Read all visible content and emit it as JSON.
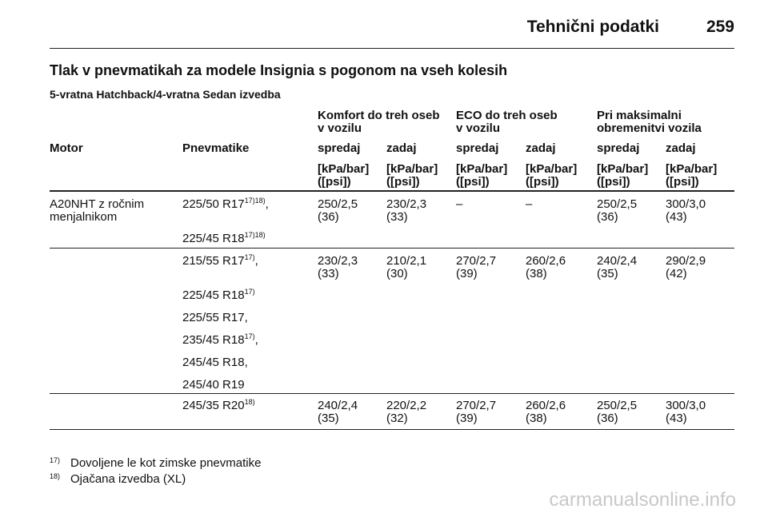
{
  "header": {
    "title": "Tehnični podatki",
    "page": "259"
  },
  "section_title": "Tlak v pnevmatikah za modele Insignia s pogonom na vseh kolesih",
  "subtitle": "5-vratna Hatchback/4-vratna Sedan izvedba",
  "table": {
    "group_headers": [
      [
        "Komfort do treh oseb",
        "v vozilu"
      ],
      [
        "ECO do treh oseb",
        "v vozilu"
      ],
      [
        "Pri maksimalni",
        "obremenitvi vozila"
      ]
    ],
    "columns": [
      "Motor",
      "Pnevmatike",
      "spredaj",
      "zadaj",
      "spredaj",
      "zadaj",
      "spredaj",
      "zadaj"
    ],
    "units": [
      [
        "[kPa/bar]",
        "([psi])"
      ],
      [
        "[kPa/bar]",
        "([psi])"
      ],
      [
        "[kPa/bar]",
        "([psi])"
      ],
      [
        "[kPa/bar]",
        "([psi])"
      ],
      [
        "[kPa/bar]",
        "([psi])"
      ],
      [
        "[kPa/bar]",
        "([psi])"
      ]
    ],
    "rows": [
      {
        "motor": [
          "A20NHT z ročnim",
          "menjalnikom"
        ],
        "tires": [
          {
            "text": "225/50 R17",
            "sup": "17)18)",
            "suffix": ","
          },
          {
            "text": "225/45 R18",
            "sup": "17)18)"
          }
        ],
        "values": [
          [
            "250/2,5",
            "(36)"
          ],
          [
            "230/2,3",
            "(33)"
          ],
          [
            "–"
          ],
          [
            "–"
          ],
          [
            "250/2,5",
            "(36)"
          ],
          [
            "300/3,0",
            "(43)"
          ]
        ]
      },
      {
        "motor": [],
        "tires": [
          {
            "text": "215/55 R17",
            "sup": "17)",
            "suffix": ","
          },
          {
            "text": "225/45 R18",
            "sup": "17)"
          },
          {
            "text": "225/55 R17,"
          },
          {
            "text": "235/45 R18",
            "sup": "17)",
            "suffix": ","
          },
          {
            "text": "245/45 R18,"
          },
          {
            "text": "245/40 R19"
          }
        ],
        "values": [
          [
            "230/2,3",
            "(33)"
          ],
          [
            "210/2,1",
            "(30)"
          ],
          [
            "270/2,7",
            "(39)"
          ],
          [
            "260/2,6",
            "(38)"
          ],
          [
            "240/2,4",
            "(35)"
          ],
          [
            "290/2,9",
            "(42)"
          ]
        ]
      },
      {
        "motor": [],
        "tires": [
          {
            "text": "245/35 R20",
            "sup": "18)"
          }
        ],
        "values": [
          [
            "240/2,4",
            "(35)"
          ],
          [
            "220/2,2",
            "(32)"
          ],
          [
            "270/2,7",
            "(39)"
          ],
          [
            "260/2,6",
            "(38)"
          ],
          [
            "250/2,5",
            "(36)"
          ],
          [
            "300/3,0",
            "(43)"
          ]
        ]
      }
    ]
  },
  "footnotes": [
    {
      "mark": "17)",
      "text": "Dovoljene le kot zimske pnevmatike"
    },
    {
      "mark": "18)",
      "text": "Ojačana izvedba (XL)"
    }
  ],
  "watermark": "carmanualsonline.info"
}
